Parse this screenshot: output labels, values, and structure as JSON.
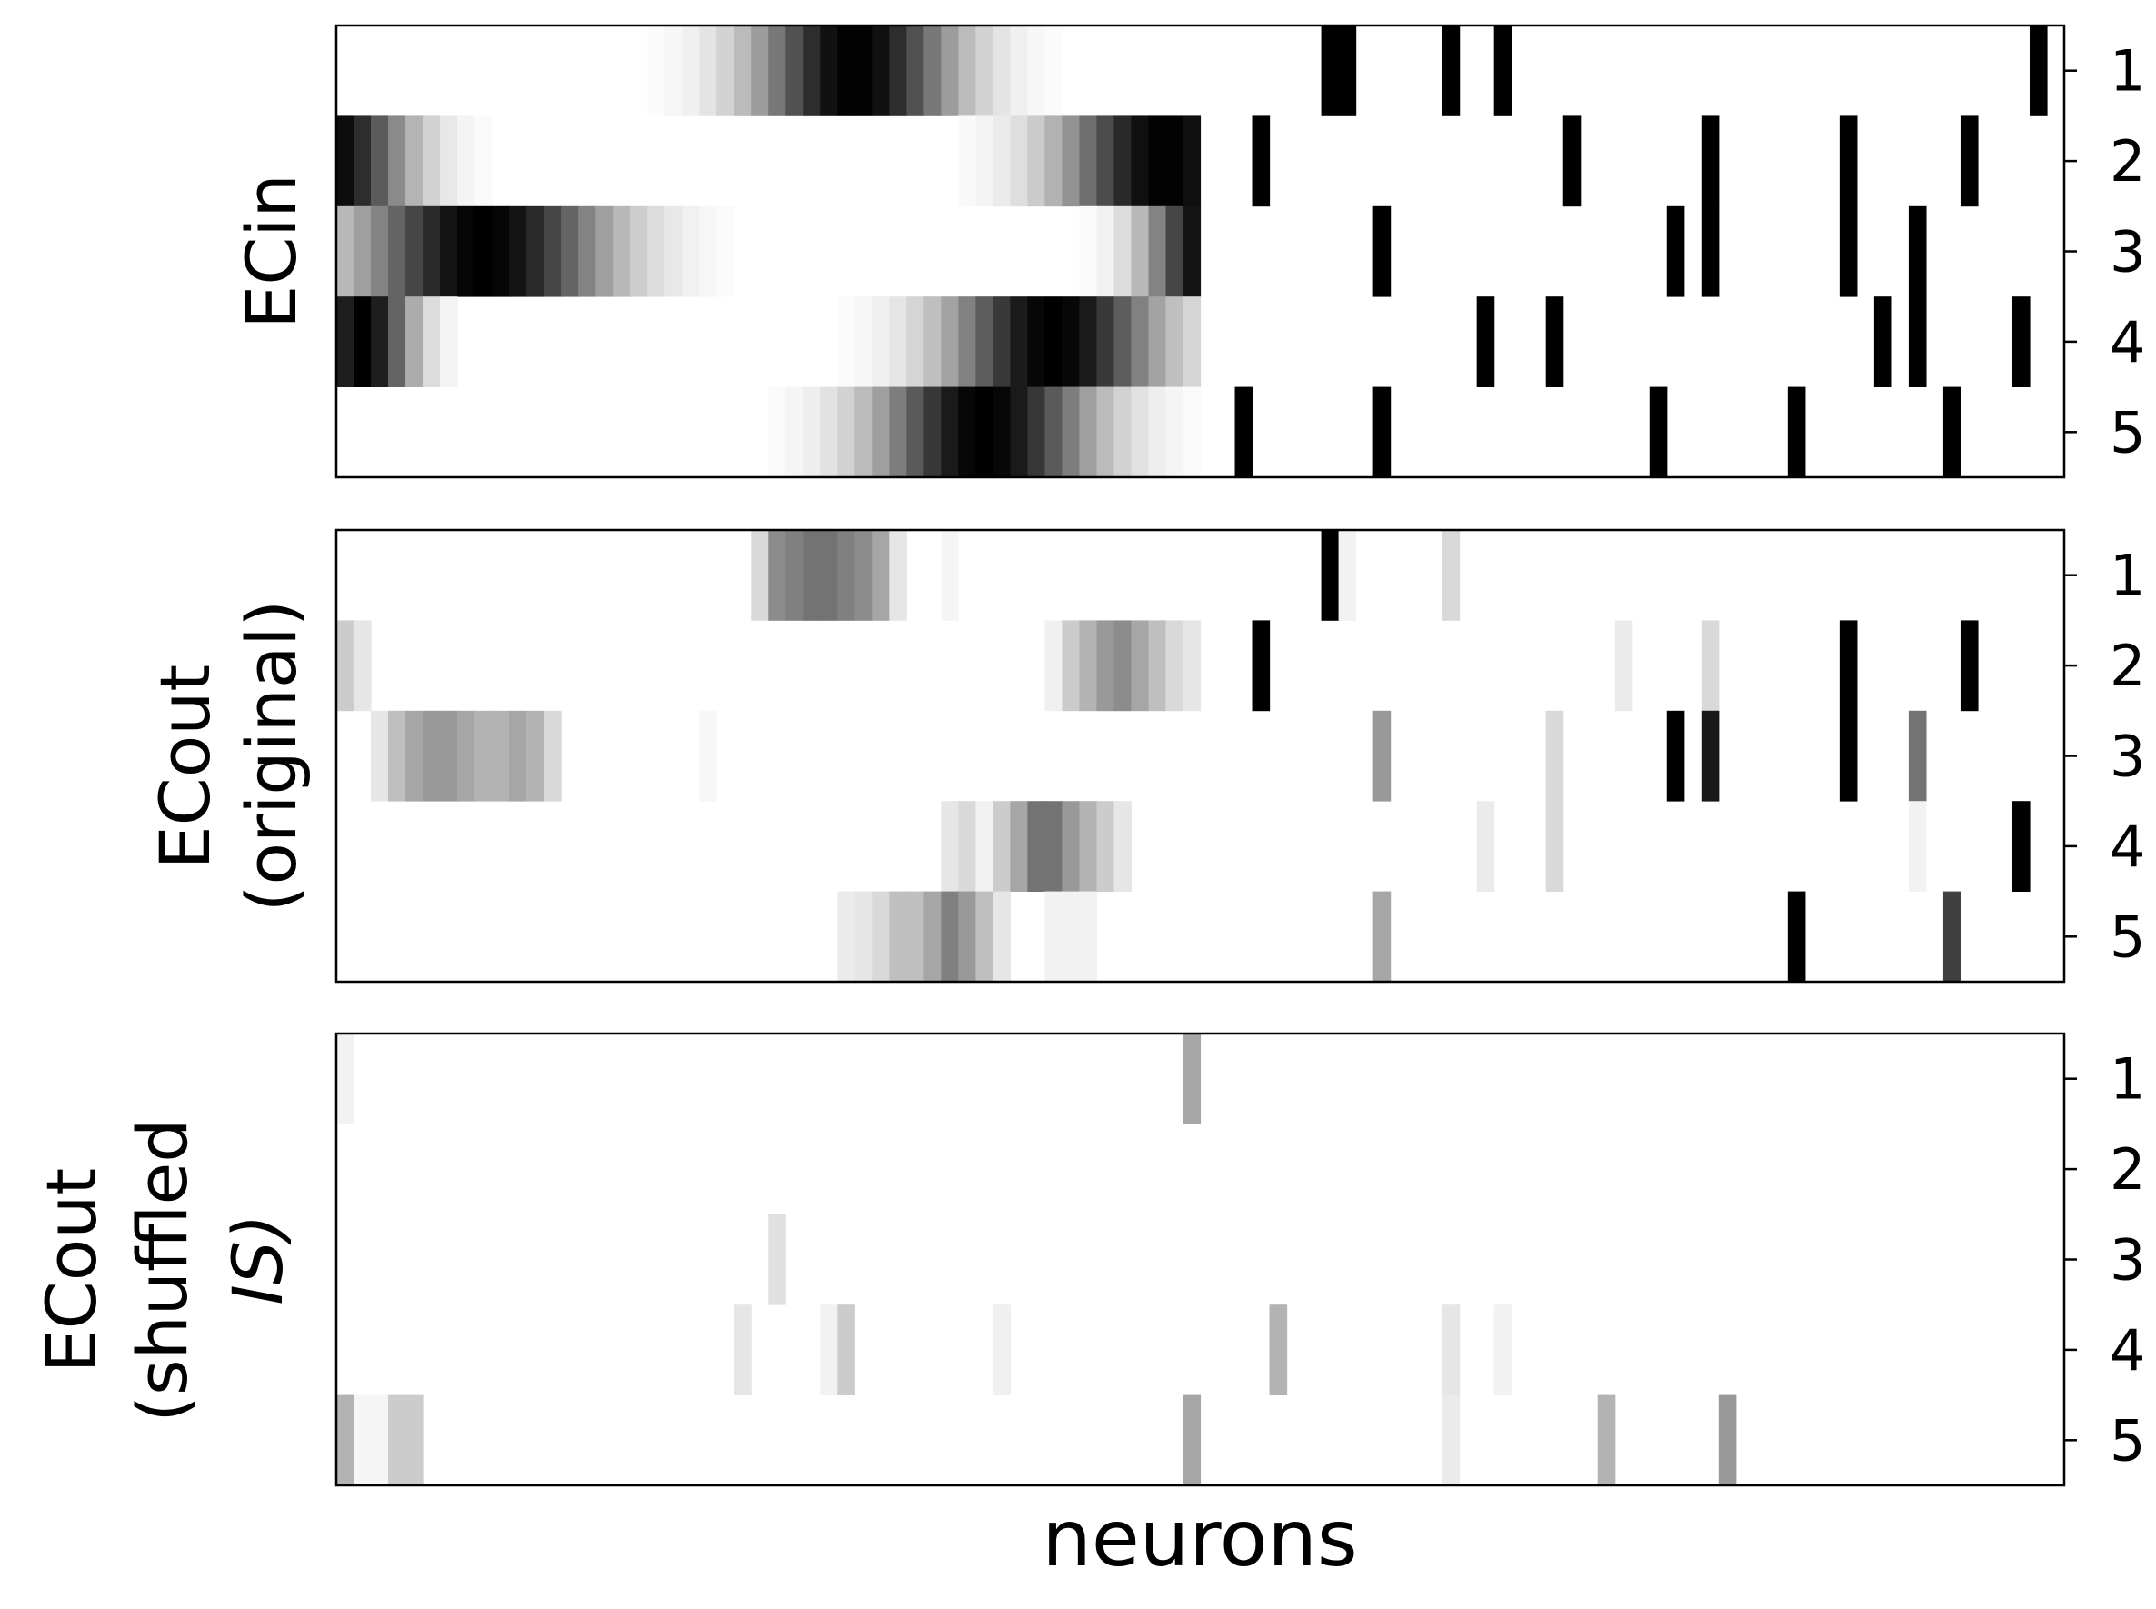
{
  "chart_data": [
    {
      "type": "heatmap",
      "ylabel": [
        "ECin"
      ],
      "xlabel": "",
      "rows": [
        "1",
        "2",
        "3",
        "4",
        "5"
      ],
      "n_neurons": 100,
      "colormap": "greys (white = 0, black = 1)",
      "gaussian_bumps": [
        {
          "row": 1,
          "center": 29.5,
          "sigma": 4.0,
          "start": 0,
          "end": 50
        },
        {
          "row": 2,
          "center": 47.5,
          "sigma": 4.2,
          "start": 0,
          "end": 50
        },
        {
          "row": 2,
          "center": -1.0,
          "sigma": 3.2,
          "start": 0,
          "end": 50
        },
        {
          "row": 3,
          "center": 8.0,
          "sigma": 5.0,
          "start": 0,
          "end": 50
        },
        {
          "row": 3,
          "center": 50.0,
          "sigma": 2.5,
          "start": 0,
          "end": 50
        },
        {
          "row": 4,
          "center": 41.0,
          "sigma": 4.2,
          "start": 0,
          "end": 50
        },
        {
          "row": 4,
          "center": 1.0,
          "sigma": 2.0,
          "start": 0,
          "end": 50
        },
        {
          "row": 5,
          "center": 37.0,
          "sigma": 4.3,
          "start": 0,
          "end": 50
        }
      ],
      "spikes": [
        {
          "row": 1,
          "neurons": [
            57,
            58,
            64,
            67,
            98
          ],
          "value": 1.0
        },
        {
          "row": 2,
          "neurons": [
            53,
            71,
            79,
            87,
            94
          ],
          "value": 1.0
        },
        {
          "row": 3,
          "neurons": [
            60,
            77,
            79,
            87,
            91
          ],
          "value": 1.0
        },
        {
          "row": 4,
          "neurons": [
            66,
            70,
            89,
            91,
            97
          ],
          "value": 1.0
        },
        {
          "row": 5,
          "neurons": [
            52,
            60,
            76,
            84,
            93
          ],
          "value": 1.0
        }
      ]
    },
    {
      "type": "heatmap",
      "ylabel": [
        "ECout",
        "(original)"
      ],
      "xlabel": "",
      "rows": [
        "1",
        "2",
        "3",
        "4",
        "5"
      ],
      "n_neurons": 100,
      "colormap": "greys (white = 0, black = 1)",
      "cells": [
        {
          "row": 1,
          "neuron": 24,
          "value": 0.15
        },
        {
          "row": 1,
          "neuron": 25,
          "value": 0.45
        },
        {
          "row": 1,
          "neuron": 26,
          "value": 0.5
        },
        {
          "row": 1,
          "neuron": 27,
          "value": 0.55
        },
        {
          "row": 1,
          "neuron": 28,
          "value": 0.55
        },
        {
          "row": 1,
          "neuron": 29,
          "value": 0.5
        },
        {
          "row": 1,
          "neuron": 30,
          "value": 0.45
        },
        {
          "row": 1,
          "neuron": 31,
          "value": 0.35
        },
        {
          "row": 1,
          "neuron": 32,
          "value": 0.1
        },
        {
          "row": 1,
          "neuron": 35,
          "value": 0.04
        },
        {
          "row": 1,
          "neuron": 57,
          "value": 1.0
        },
        {
          "row": 1,
          "neuron": 58,
          "value": 0.05
        },
        {
          "row": 1,
          "neuron": 64,
          "value": 0.15
        },
        {
          "row": 2,
          "neuron": 0,
          "value": 0.2
        },
        {
          "row": 2,
          "neuron": 1,
          "value": 0.1
        },
        {
          "row": 2,
          "neuron": 41,
          "value": 0.06
        },
        {
          "row": 2,
          "neuron": 42,
          "value": 0.2
        },
        {
          "row": 2,
          "neuron": 43,
          "value": 0.3
        },
        {
          "row": 2,
          "neuron": 44,
          "value": 0.4
        },
        {
          "row": 2,
          "neuron": 45,
          "value": 0.45
        },
        {
          "row": 2,
          "neuron": 46,
          "value": 0.35
        },
        {
          "row": 2,
          "neuron": 47,
          "value": 0.25
        },
        {
          "row": 2,
          "neuron": 48,
          "value": 0.15
        },
        {
          "row": 2,
          "neuron": 49,
          "value": 0.1
        },
        {
          "row": 2,
          "neuron": 53,
          "value": 1.0
        },
        {
          "row": 2,
          "neuron": 74,
          "value": 0.08
        },
        {
          "row": 2,
          "neuron": 79,
          "value": 0.15
        },
        {
          "row": 2,
          "neuron": 87,
          "value": 1.0
        },
        {
          "row": 2,
          "neuron": 94,
          "value": 1.0
        },
        {
          "row": 3,
          "neuron": 2,
          "value": 0.1
        },
        {
          "row": 3,
          "neuron": 3,
          "value": 0.25
        },
        {
          "row": 3,
          "neuron": 4,
          "value": 0.35
        },
        {
          "row": 3,
          "neuron": 5,
          "value": 0.4
        },
        {
          "row": 3,
          "neuron": 6,
          "value": 0.4
        },
        {
          "row": 3,
          "neuron": 7,
          "value": 0.35
        },
        {
          "row": 3,
          "neuron": 8,
          "value": 0.3
        },
        {
          "row": 3,
          "neuron": 9,
          "value": 0.3
        },
        {
          "row": 3,
          "neuron": 10,
          "value": 0.35
        },
        {
          "row": 3,
          "neuron": 11,
          "value": 0.3
        },
        {
          "row": 3,
          "neuron": 12,
          "value": 0.15
        },
        {
          "row": 3,
          "neuron": 21,
          "value": 0.03
        },
        {
          "row": 3,
          "neuron": 60,
          "value": 0.4
        },
        {
          "row": 3,
          "neuron": 70,
          "value": 0.15
        },
        {
          "row": 3,
          "neuron": 77,
          "value": 1.0
        },
        {
          "row": 3,
          "neuron": 79,
          "value": 0.9
        },
        {
          "row": 3,
          "neuron": 87,
          "value": 1.0
        },
        {
          "row": 3,
          "neuron": 91,
          "value": 0.55
        },
        {
          "row": 4,
          "neuron": 35,
          "value": 0.1
        },
        {
          "row": 4,
          "neuron": 36,
          "value": 0.15
        },
        {
          "row": 4,
          "neuron": 37,
          "value": 0.05
        },
        {
          "row": 4,
          "neuron": 38,
          "value": 0.2
        },
        {
          "row": 4,
          "neuron": 39,
          "value": 0.35
        },
        {
          "row": 4,
          "neuron": 40,
          "value": 0.55
        },
        {
          "row": 4,
          "neuron": 41,
          "value": 0.55
        },
        {
          "row": 4,
          "neuron": 42,
          "value": 0.4
        },
        {
          "row": 4,
          "neuron": 43,
          "value": 0.3
        },
        {
          "row": 4,
          "neuron": 44,
          "value": 0.2
        },
        {
          "row": 4,
          "neuron": 45,
          "value": 0.1
        },
        {
          "row": 4,
          "neuron": 66,
          "value": 0.08
        },
        {
          "row": 4,
          "neuron": 70,
          "value": 0.15
        },
        {
          "row": 4,
          "neuron": 91,
          "value": 0.05
        },
        {
          "row": 4,
          "neuron": 97,
          "value": 1.0
        },
        {
          "row": 5,
          "neuron": 29,
          "value": 0.08
        },
        {
          "row": 5,
          "neuron": 30,
          "value": 0.1
        },
        {
          "row": 5,
          "neuron": 31,
          "value": 0.15
        },
        {
          "row": 5,
          "neuron": 32,
          "value": 0.25
        },
        {
          "row": 5,
          "neuron": 33,
          "value": 0.25
        },
        {
          "row": 5,
          "neuron": 34,
          "value": 0.35
        },
        {
          "row": 5,
          "neuron": 35,
          "value": 0.5
        },
        {
          "row": 5,
          "neuron": 36,
          "value": 0.4
        },
        {
          "row": 5,
          "neuron": 37,
          "value": 0.25
        },
        {
          "row": 5,
          "neuron": 38,
          "value": 0.1
        },
        {
          "row": 5,
          "neuron": 41,
          "value": 0.05
        },
        {
          "row": 5,
          "neuron": 42,
          "value": 0.05
        },
        {
          "row": 5,
          "neuron": 43,
          "value": 0.05
        },
        {
          "row": 5,
          "neuron": 60,
          "value": 0.35
        },
        {
          "row": 5,
          "neuron": 84,
          "value": 1.0
        },
        {
          "row": 5,
          "neuron": 93,
          "value": 0.75
        }
      ]
    },
    {
      "type": "heatmap",
      "ylabel": [
        "ECout",
        "(shuffled",
        "IS)"
      ],
      "xlabel": "neurons",
      "rows": [
        "1",
        "2",
        "3",
        "4",
        "5"
      ],
      "n_neurons": 100,
      "colormap": "greys (white = 0, black = 1)",
      "cells": [
        {
          "row": 1,
          "neuron": 0,
          "value": 0.05
        },
        {
          "row": 1,
          "neuron": 49,
          "value": 0.35
        },
        {
          "row": 3,
          "neuron": 25,
          "value": 0.12
        },
        {
          "row": 4,
          "neuron": 23,
          "value": 0.1
        },
        {
          "row": 4,
          "neuron": 28,
          "value": 0.05
        },
        {
          "row": 4,
          "neuron": 29,
          "value": 0.2
        },
        {
          "row": 4,
          "neuron": 38,
          "value": 0.06
        },
        {
          "row": 4,
          "neuron": 54,
          "value": 0.3
        },
        {
          "row": 4,
          "neuron": 64,
          "value": 0.1
        },
        {
          "row": 4,
          "neuron": 67,
          "value": 0.05
        },
        {
          "row": 5,
          "neuron": 0,
          "value": 0.3
        },
        {
          "row": 5,
          "neuron": 1,
          "value": 0.04
        },
        {
          "row": 5,
          "neuron": 2,
          "value": 0.04
        },
        {
          "row": 5,
          "neuron": 3,
          "value": 0.2
        },
        {
          "row": 5,
          "neuron": 4,
          "value": 0.2
        },
        {
          "row": 5,
          "neuron": 49,
          "value": 0.35
        },
        {
          "row": 5,
          "neuron": 64,
          "value": 0.08
        },
        {
          "row": 5,
          "neuron": 73,
          "value": 0.3
        },
        {
          "row": 5,
          "neuron": 80,
          "value": 0.4
        }
      ]
    }
  ]
}
